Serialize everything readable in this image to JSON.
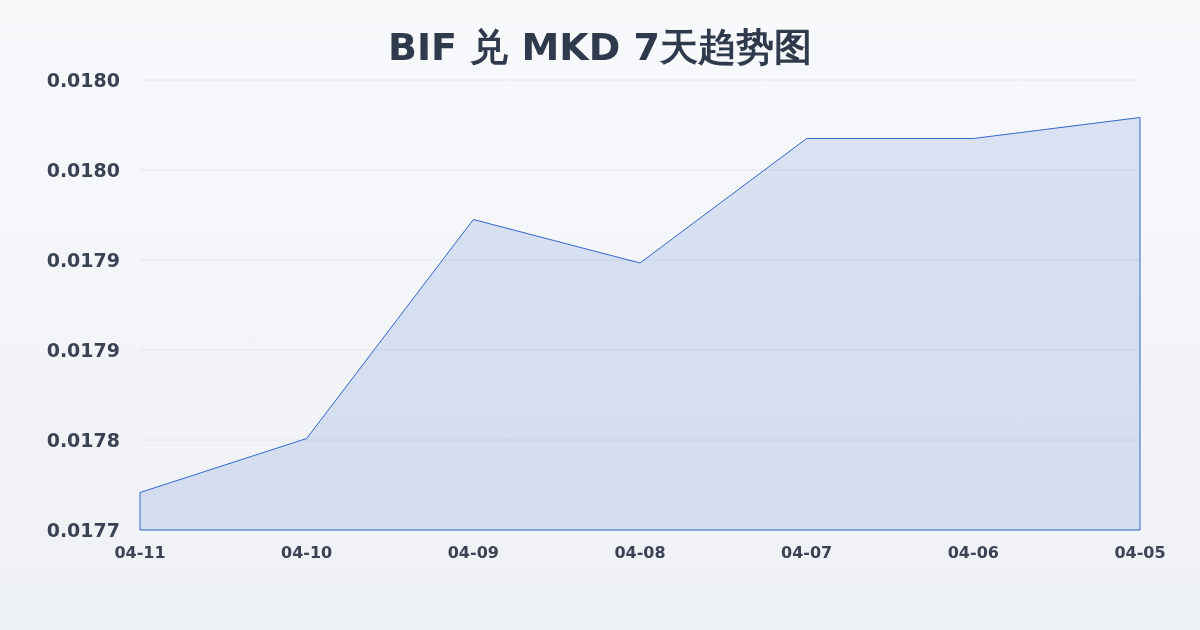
{
  "chart_data": {
    "type": "area",
    "title": "BIF 兑 MKD 7天趋势图",
    "categories": [
      "04-11",
      "04-10",
      "04-09",
      "04-08",
      "04-07",
      "04-06",
      "04-05"
    ],
    "values": [
      0.017765,
      0.017801,
      0.017947,
      0.017918,
      0.018001,
      0.018001,
      0.018015
    ],
    "color": "#3366cc",
    "ylim": [
      0.01774,
      0.01804
    ],
    "yticks": [
      {
        "value": 0.01774,
        "label": "0.0177"
      },
      {
        "value": 0.0178,
        "label": "0.0178"
      },
      {
        "value": 0.01786,
        "label": "0.0179"
      },
      {
        "value": 0.01792,
        "label": "0.0179"
      },
      {
        "value": 0.01798,
        "label": "0.0180"
      },
      {
        "value": 0.01804,
        "label": "0.0180"
      }
    ],
    "grid": "y"
  }
}
